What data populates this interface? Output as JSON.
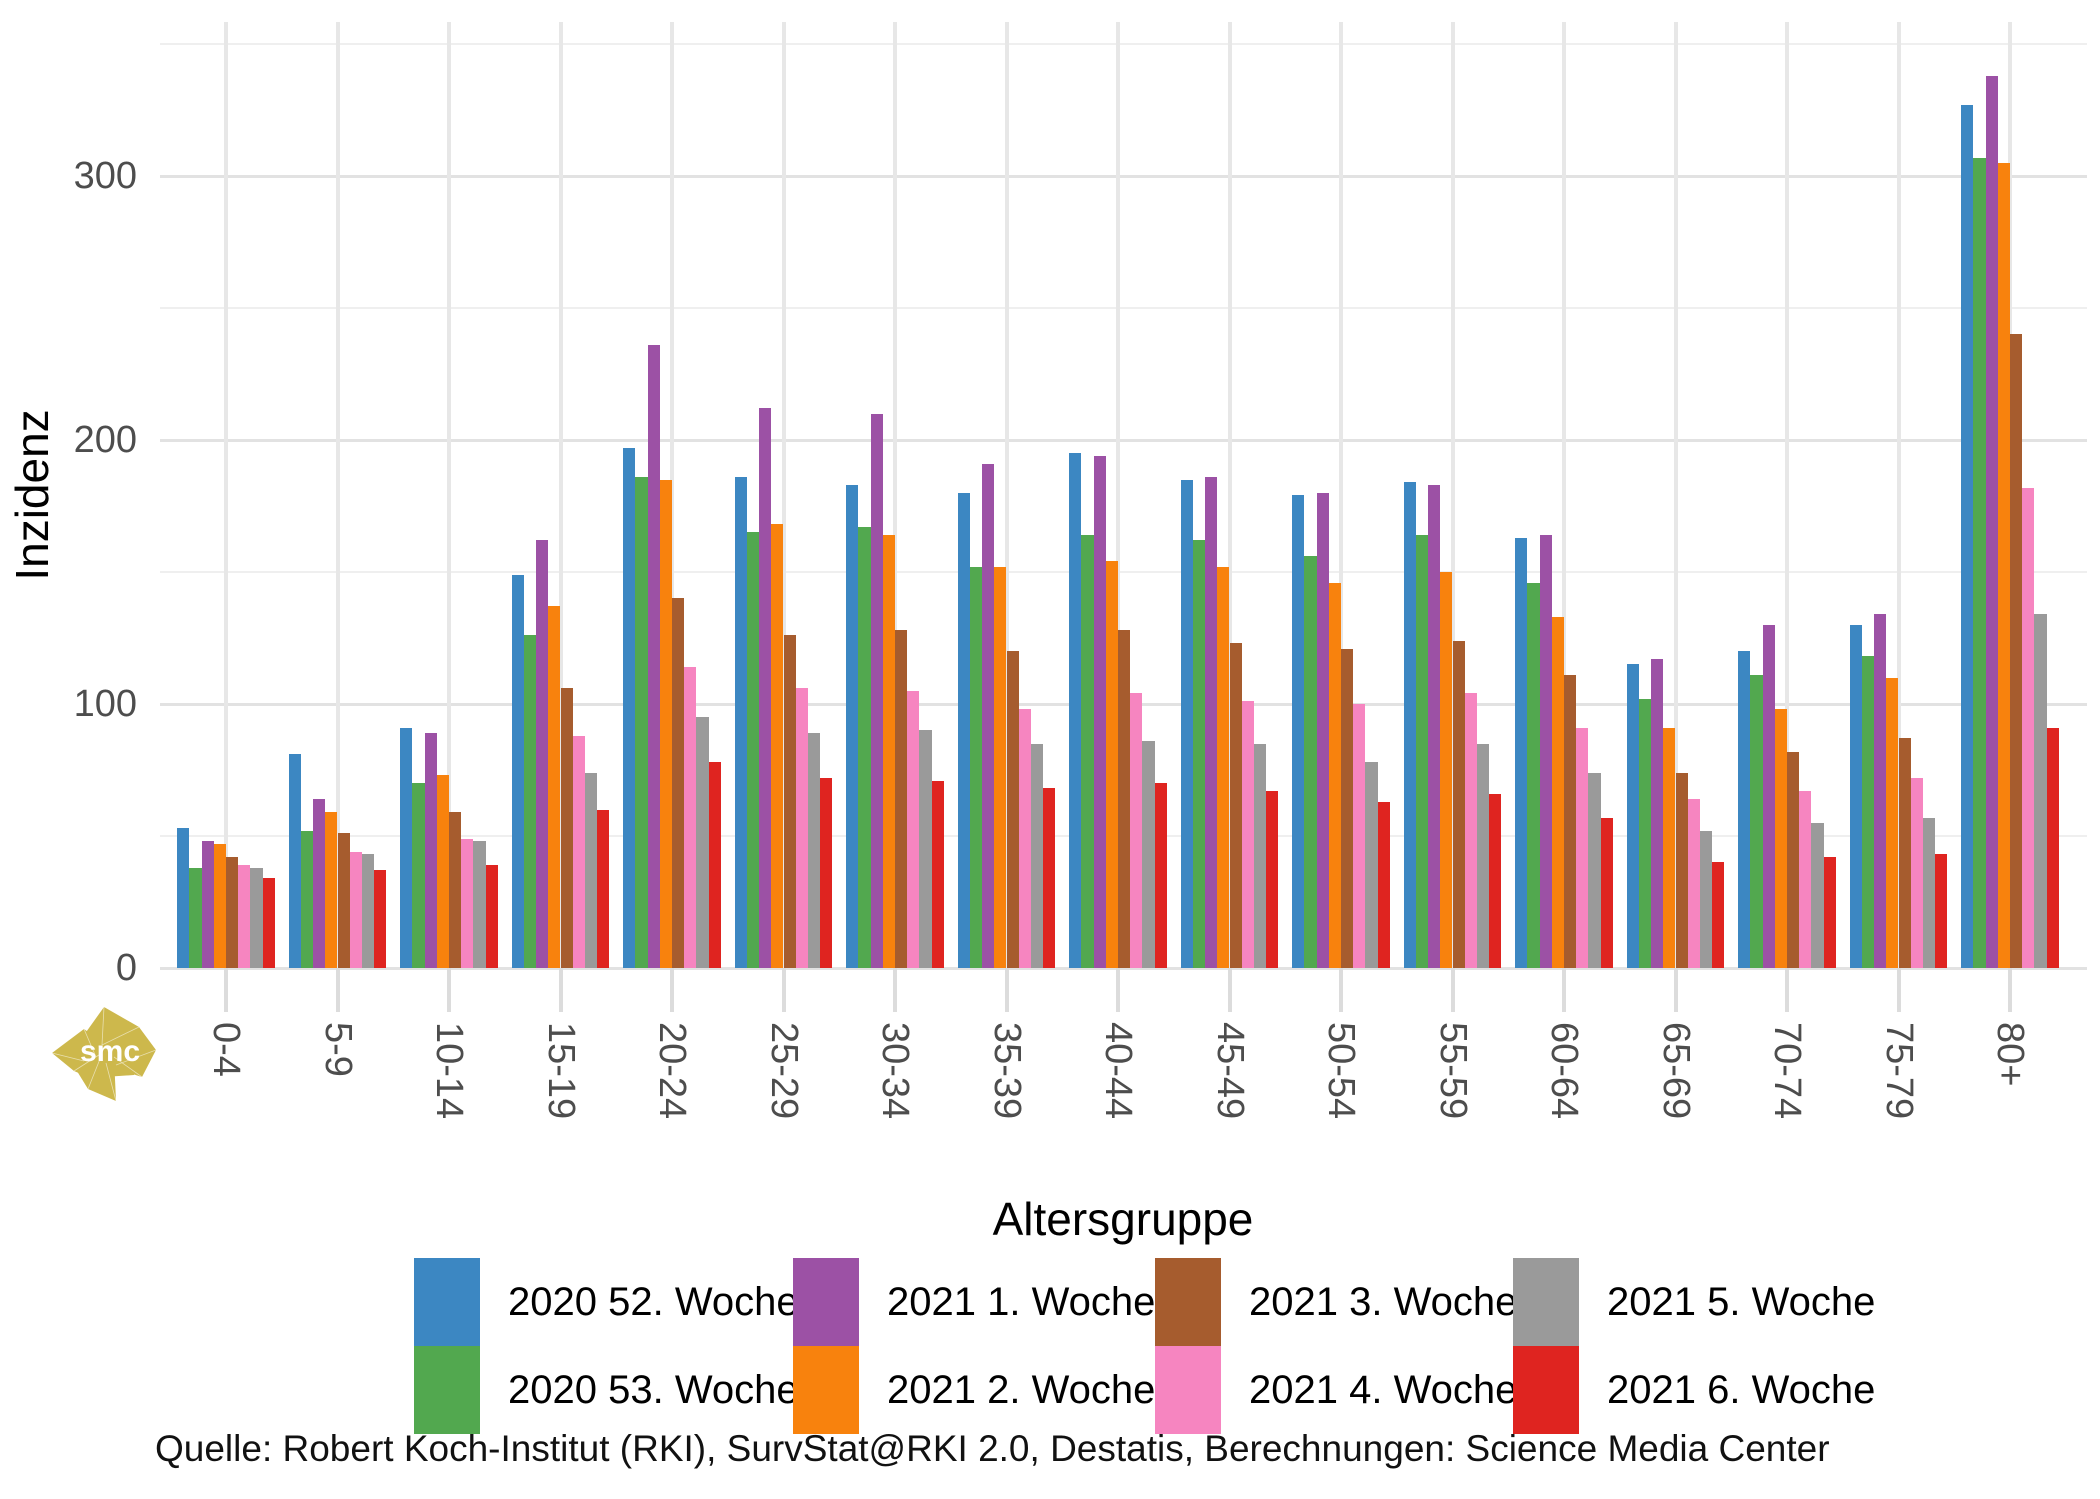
{
  "figure": {
    "kind": "grouped-bar-chart"
  },
  "y_axis": {
    "title": "Inzidenz",
    "tick_labels": [
      "0",
      "100",
      "200",
      "300"
    ]
  },
  "x_axis": {
    "title": "Altersgruppe"
  },
  "source": {
    "text": "Quelle: Robert Koch-Institut (RKI), SurvStat@RKI 2.0, Destatis, Berechnungen: Science Media Center"
  },
  "logo": {
    "text": "smc",
    "color": "#cdb84c"
  },
  "colors": {
    "grid_major": "#e2e2e2",
    "grid_minor": "#efefef",
    "grid_vertical": "#e7e7e7",
    "axis_text": "#4d4d4d",
    "tick_mark": "#dcdcdc"
  },
  "chart_data": {
    "type": "bar",
    "title": "",
    "xlabel": "Altersgruppe",
    "ylabel": "Inzidenz",
    "ylim": [
      0,
      350
    ],
    "yticks": [
      0,
      100,
      200,
      300
    ],
    "grid": true,
    "legend_position": "bottom",
    "categories": [
      "0-4",
      "5-9",
      "10-14",
      "15-19",
      "20-24",
      "25-29",
      "30-34",
      "35-39",
      "40-44",
      "45-49",
      "50-54",
      "55-59",
      "60-64",
      "65-69",
      "70-74",
      "75-79",
      "80+"
    ],
    "series": [
      {
        "name": "2020 52. Woche",
        "color": "#3c87c2",
        "values": [
          53,
          81,
          91,
          149,
          197,
          186,
          183,
          180,
          195,
          185,
          179,
          184,
          163,
          115,
          120,
          130,
          327
        ]
      },
      {
        "name": "2020 53. Woche",
        "color": "#52a84f",
        "values": [
          38,
          52,
          70,
          126,
          186,
          165,
          167,
          152,
          164,
          162,
          156,
          164,
          146,
          102,
          111,
          118,
          307
        ]
      },
      {
        "name": "2021 1. Woche",
        "color": "#9c51a5",
        "values": [
          48,
          64,
          89,
          162,
          236,
          212,
          210,
          191,
          194,
          186,
          180,
          183,
          164,
          117,
          130,
          134,
          338
        ]
      },
      {
        "name": "2021 2. Woche",
        "color": "#f8820d",
        "values": [
          47,
          59,
          73,
          137,
          185,
          168,
          164,
          152,
          154,
          152,
          146,
          150,
          133,
          91,
          98,
          110,
          305
        ]
      },
      {
        "name": "2021 3. Woche",
        "color": "#a65c2e",
        "values": [
          42,
          51,
          59,
          106,
          140,
          126,
          128,
          120,
          128,
          123,
          121,
          124,
          111,
          74,
          82,
          87,
          240
        ]
      },
      {
        "name": "2021 4. Woche",
        "color": "#f685c0",
        "values": [
          39,
          44,
          49,
          88,
          114,
          106,
          105,
          98,
          104,
          101,
          100,
          104,
          91,
          64,
          67,
          72,
          182
        ]
      },
      {
        "name": "2021 5. Woche",
        "color": "#9a9a9a",
        "values": [
          38,
          43,
          48,
          74,
          95,
          89,
          90,
          85,
          86,
          85,
          78,
          85,
          74,
          52,
          55,
          57,
          134
        ]
      },
      {
        "name": "2021 6. Woche",
        "color": "#df2420",
        "values": [
          34,
          37,
          39,
          60,
          78,
          72,
          71,
          68,
          70,
          67,
          63,
          66,
          57,
          40,
          42,
          43,
          91
        ]
      }
    ]
  }
}
